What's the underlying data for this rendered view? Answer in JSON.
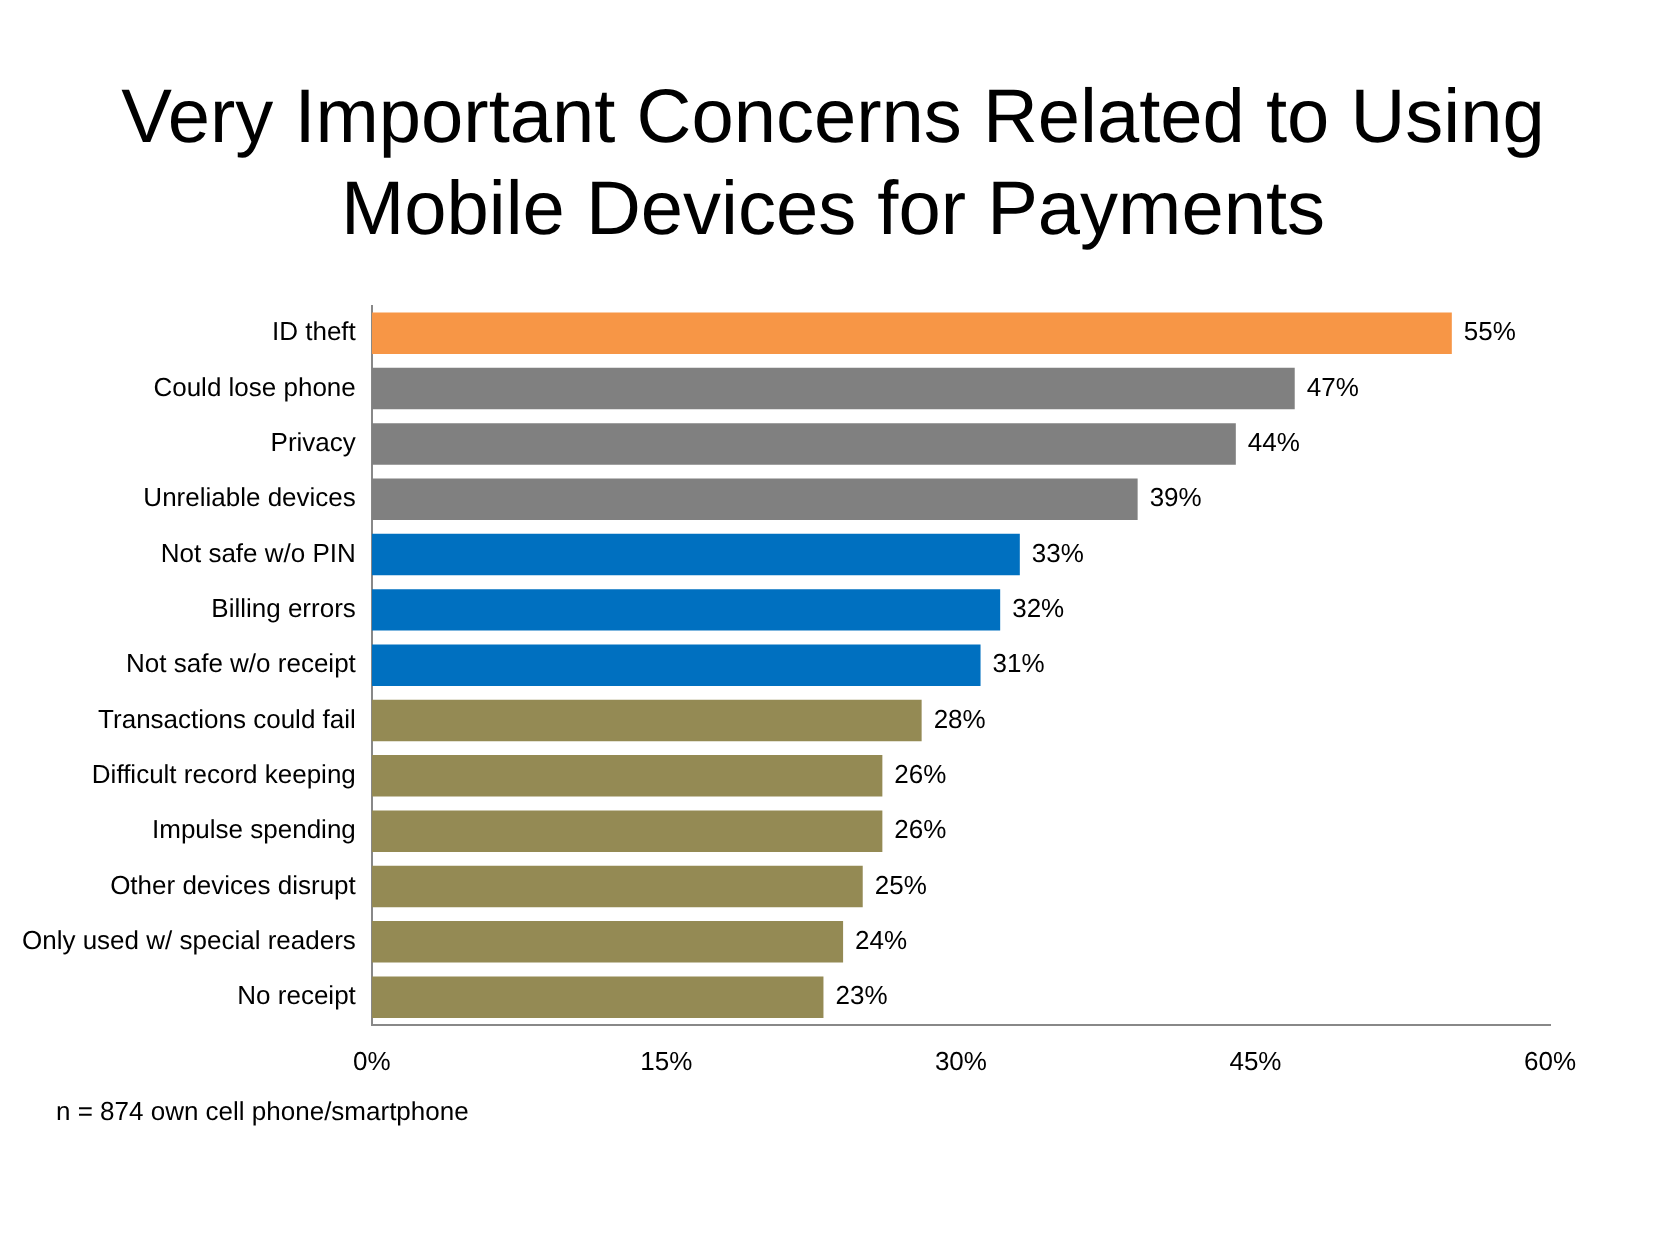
{
  "chart_data": {
    "type": "bar",
    "orientation": "horizontal",
    "title": "Very Important Concerns Related to Using Mobile Devices for Payments",
    "categories": [
      "ID theft",
      "Could lose phone",
      "Privacy",
      "Unreliable devices",
      "Not safe w/o PIN",
      "Billing errors",
      "Not safe w/o receipt",
      "Transactions could fail",
      "Difficult record keeping",
      "Impulse spending",
      "Other devices disrupt",
      "Only used w/ special readers",
      "No receipt"
    ],
    "values": [
      55,
      47,
      44,
      39,
      33,
      32,
      31,
      28,
      26,
      26,
      25,
      24,
      23
    ],
    "colors": [
      "#f79646",
      "#808080",
      "#808080",
      "#808080",
      "#0070c0",
      "#0070c0",
      "#0070c0",
      "#948a54",
      "#948a54",
      "#948a54",
      "#948a54",
      "#948a54",
      "#948a54"
    ],
    "value_labels": [
      "55%",
      "47%",
      "44%",
      "39%",
      "33%",
      "32%",
      "31%",
      "28%",
      "26%",
      "26%",
      "25%",
      "24%",
      "23%"
    ],
    "xlim": [
      0,
      60
    ],
    "xticks": [
      {
        "value": 0,
        "label": "0%"
      },
      {
        "value": 15,
        "label": "15%"
      },
      {
        "value": 30,
        "label": "30%"
      },
      {
        "value": 45,
        "label": "45%"
      },
      {
        "value": 60,
        "label": "60%"
      }
    ],
    "grid": false,
    "legend": false,
    "annotations": [
      "n = 874 own cell phone/smartphone"
    ]
  }
}
